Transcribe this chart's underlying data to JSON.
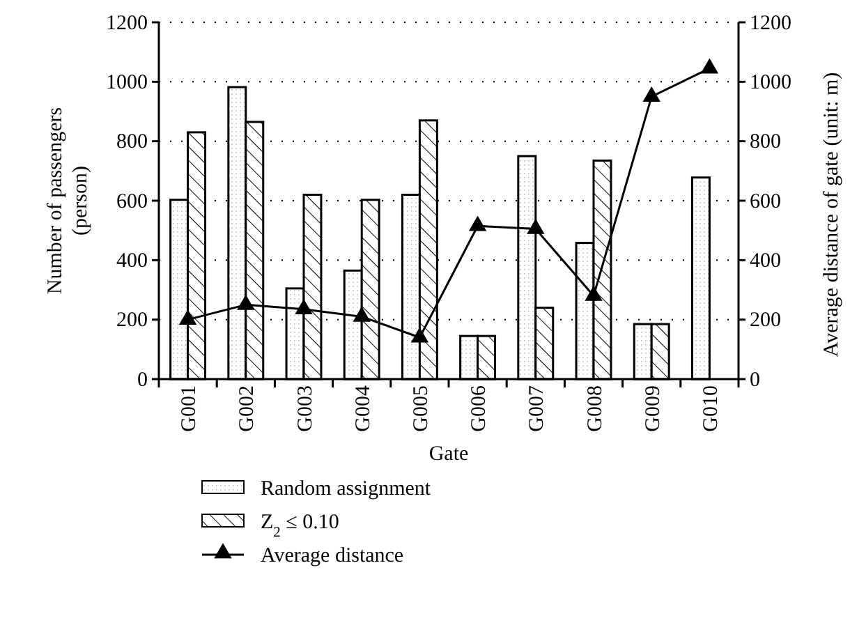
{
  "chart_data": {
    "type": "bar",
    "xlabel": "Gate",
    "ylabel": "Number of passengers\n(person)",
    "y2label": "Average distance of gate (unit: m)",
    "categories": [
      "G001",
      "G002",
      "G003",
      "G004",
      "G005",
      "G006",
      "G007",
      "G008",
      "G009",
      "G010"
    ],
    "series": [
      {
        "name": "Random assignment",
        "color": "#000000",
        "values": [
          603,
          982,
          305,
          365,
          620,
          145,
          750,
          458,
          185,
          678
        ]
      },
      {
        "name": "Z$_{2}$ ≤ 0.10",
        "color": "#000000",
        "values": [
          830,
          865,
          620,
          603,
          870,
          145,
          240,
          735,
          185,
          null
        ]
      },
      {
        "name": "Average distance",
        "type": "line",
        "axis": "y2",
        "color": "#000000",
        "marker": "triangle",
        "values": [
          200,
          250,
          235,
          210,
          140,
          515,
          505,
          280,
          950,
          1045
        ]
      }
    ],
    "ylim": [
      0,
      1200
    ],
    "yticks": [
      0,
      200,
      400,
      600,
      800,
      1000,
      1200
    ],
    "y2lim": [
      0,
      1200
    ],
    "y2ticks": [
      0,
      200,
      400,
      600,
      800,
      1000,
      1200
    ],
    "grid": "y",
    "legend": "bottom"
  }
}
